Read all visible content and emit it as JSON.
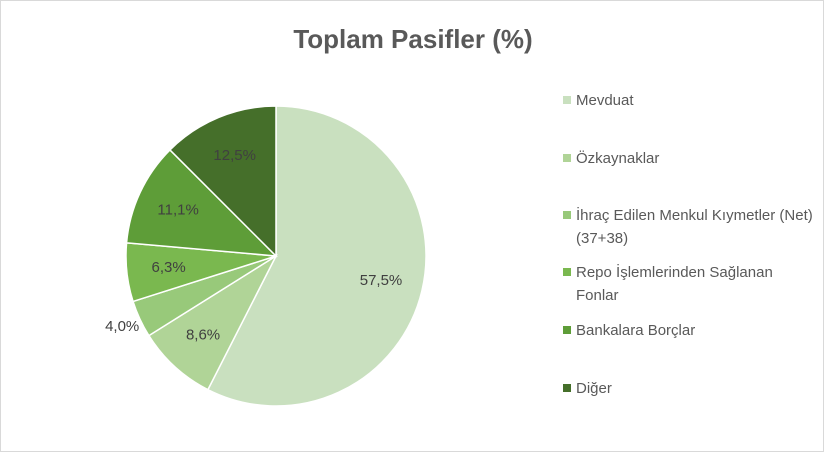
{
  "chart_data": {
    "type": "pie",
    "title": "Toplam Pasifler (%)",
    "categories": [
      "Mevduat",
      "Özkaynaklar",
      "İhraç Edilen Menkul Kıymetler (Net) (37+38)",
      "Repo İşlemlerinden Sağlanan Fonlar",
      "Bankalara Borçlar",
      "Diğer"
    ],
    "values": [
      57.5,
      8.6,
      4.0,
      6.3,
      11.1,
      12.5
    ],
    "value_labels": [
      "57,5%",
      "8,6%",
      "4,0%",
      "6,3%",
      "11,1%",
      "12,5%"
    ],
    "colors": [
      "#c9e0bf",
      "#b0d497",
      "#98c97a",
      "#7ab84f",
      "#5e9d38",
      "#456f2a"
    ],
    "legend": "right"
  }
}
